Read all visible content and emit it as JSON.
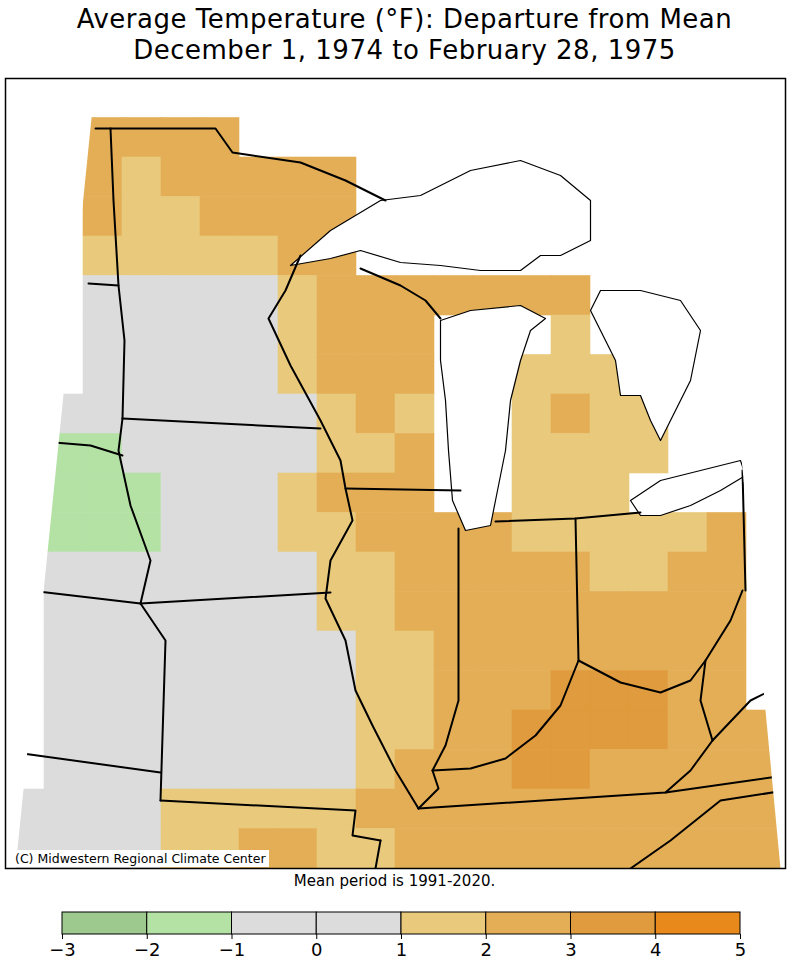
{
  "chart_data": {
    "type": "map",
    "title": "Average Temperature (°F): Departure from Mean",
    "subtitle": "December 1, 1974 to February 28, 1975",
    "caption": "Mean period is 1991-2020.",
    "credit": "(C) Midwestern Regional Climate Center",
    "cells": [
      [
        null,
        null,
        null,
        null,
        null,
        null,
        null,
        null,
        null,
        null,
        null,
        null,
        null,
        null,
        null,
        null,
        null,
        null,
        null,
        null
      ],
      [
        null,
        null,
        2.5,
        2.5,
        2.5,
        2.5,
        null,
        null,
        null,
        null,
        null,
        null,
        null,
        null,
        null,
        null,
        null,
        null,
        null,
        null
      ],
      [
        null,
        null,
        2.5,
        1.5,
        2.5,
        2.5,
        2.5,
        2.5,
        2.5,
        null,
        null,
        null,
        null,
        null,
        null,
        null,
        null,
        null,
        null,
        null
      ],
      [
        null,
        null,
        2.5,
        1.5,
        1.5,
        2.5,
        2.5,
        2.5,
        2.5,
        null,
        null,
        null,
        null,
        null,
        null,
        null,
        null,
        null,
        null,
        null
      ],
      [
        null,
        null,
        1.5,
        1.5,
        1.5,
        1.5,
        1.5,
        2.5,
        2.5,
        null,
        null,
        null,
        null,
        null,
        null,
        null,
        null,
        null,
        null,
        null
      ],
      [
        null,
        null,
        0.5,
        0.5,
        0.5,
        0.5,
        0.5,
        1.5,
        2.5,
        2.5,
        2.5,
        2.5,
        2.5,
        2.5,
        2.5,
        null,
        null,
        null,
        null,
        null
      ],
      [
        null,
        null,
        0.5,
        0.5,
        0.5,
        0.5,
        0.5,
        1.5,
        2.5,
        2.5,
        2.5,
        null,
        null,
        null,
        1.5,
        null,
        null,
        null,
        null,
        null
      ],
      [
        null,
        null,
        0.5,
        0.5,
        0.5,
        0.5,
        0.5,
        1.5,
        2.5,
        2.5,
        2.5,
        null,
        null,
        1.5,
        1.5,
        1.5,
        null,
        null,
        null,
        null
      ],
      [
        null,
        0.5,
        0.5,
        0.5,
        0.5,
        0.5,
        0.5,
        0.5,
        1.5,
        2.5,
        1.5,
        null,
        null,
        1.5,
        2.5,
        1.5,
        1.5,
        null,
        null,
        null
      ],
      [
        null,
        -1.5,
        -1.5,
        0.5,
        0.5,
        0.5,
        0.5,
        0.5,
        1.5,
        1.5,
        2.5,
        null,
        null,
        1.5,
        1.5,
        1.5,
        1.5,
        null,
        null,
        null
      ],
      [
        null,
        -1.5,
        -1.5,
        -1.5,
        0.5,
        0.5,
        0.5,
        1.5,
        2.5,
        2.5,
        2.5,
        null,
        null,
        1.5,
        1.5,
        1.5,
        null,
        null,
        null,
        null
      ],
      [
        null,
        -1.5,
        -1.5,
        -1.5,
        0.5,
        0.5,
        0.5,
        1.5,
        1.5,
        2.5,
        2.5,
        2.5,
        2.5,
        1.5,
        1.5,
        1.5,
        1.5,
        1.5,
        2.5,
        null
      ],
      [
        null,
        0.5,
        0.5,
        0.5,
        0.5,
        0.5,
        0.5,
        0.5,
        1.5,
        1.5,
        2.5,
        2.5,
        2.5,
        2.5,
        2.5,
        1.5,
        1.5,
        2.5,
        2.5,
        null
      ],
      [
        null,
        0.5,
        0.5,
        0.5,
        0.5,
        0.5,
        0.5,
        0.5,
        1.5,
        1.5,
        2.5,
        2.5,
        2.5,
        2.5,
        2.5,
        2.5,
        2.5,
        2.5,
        2.5,
        null
      ],
      [
        null,
        0.5,
        0.5,
        0.5,
        0.5,
        0.5,
        0.5,
        0.5,
        0.5,
        1.5,
        1.5,
        2.5,
        2.5,
        2.5,
        2.5,
        2.5,
        2.5,
        2.5,
        2.5,
        null
      ],
      [
        null,
        0.5,
        0.5,
        0.5,
        0.5,
        0.5,
        0.5,
        0.5,
        0.5,
        1.5,
        1.5,
        2.5,
        2.5,
        2.5,
        3.5,
        3.5,
        3.5,
        2.5,
        2.5,
        null
      ],
      [
        null,
        0.5,
        0.5,
        0.5,
        0.5,
        0.5,
        0.5,
        0.5,
        0.5,
        1.5,
        1.5,
        2.5,
        2.5,
        3.5,
        3.5,
        3.5,
        3.5,
        2.5,
        2.5,
        2.5
      ],
      [
        null,
        0.5,
        0.5,
        0.5,
        0.5,
        0.5,
        0.5,
        0.5,
        0.5,
        1.5,
        2.5,
        2.5,
        2.5,
        3.5,
        3.5,
        2.5,
        2.5,
        2.5,
        2.5,
        2.5
      ],
      [
        0.5,
        0.5,
        0.5,
        0.5,
        1.5,
        1.5,
        1.5,
        1.5,
        1.5,
        2.5,
        2.5,
        2.5,
        2.5,
        2.5,
        2.5,
        2.5,
        2.5,
        2.5,
        2.5,
        2.5
      ],
      [
        0.5,
        0.5,
        0.5,
        0.5,
        1.5,
        1.5,
        2.5,
        2.5,
        1.5,
        1.5,
        2.5,
        2.5,
        2.5,
        2.5,
        2.5,
        2.5,
        2.5,
        2.5,
        2.5,
        2.5
      ]
    ],
    "colorbar": {
      "range": [
        -3,
        5
      ],
      "ticks": [
        -3,
        -2,
        -1,
        0,
        1,
        2,
        3,
        4,
        5
      ],
      "colors": [
        "#9dc88e",
        "#b4e2a5",
        "#dcdcdc",
        "#dcdcdc",
        "#e9c97c",
        "#e3ae56",
        "#df9b3d",
        "#e8891b"
      ]
    }
  }
}
